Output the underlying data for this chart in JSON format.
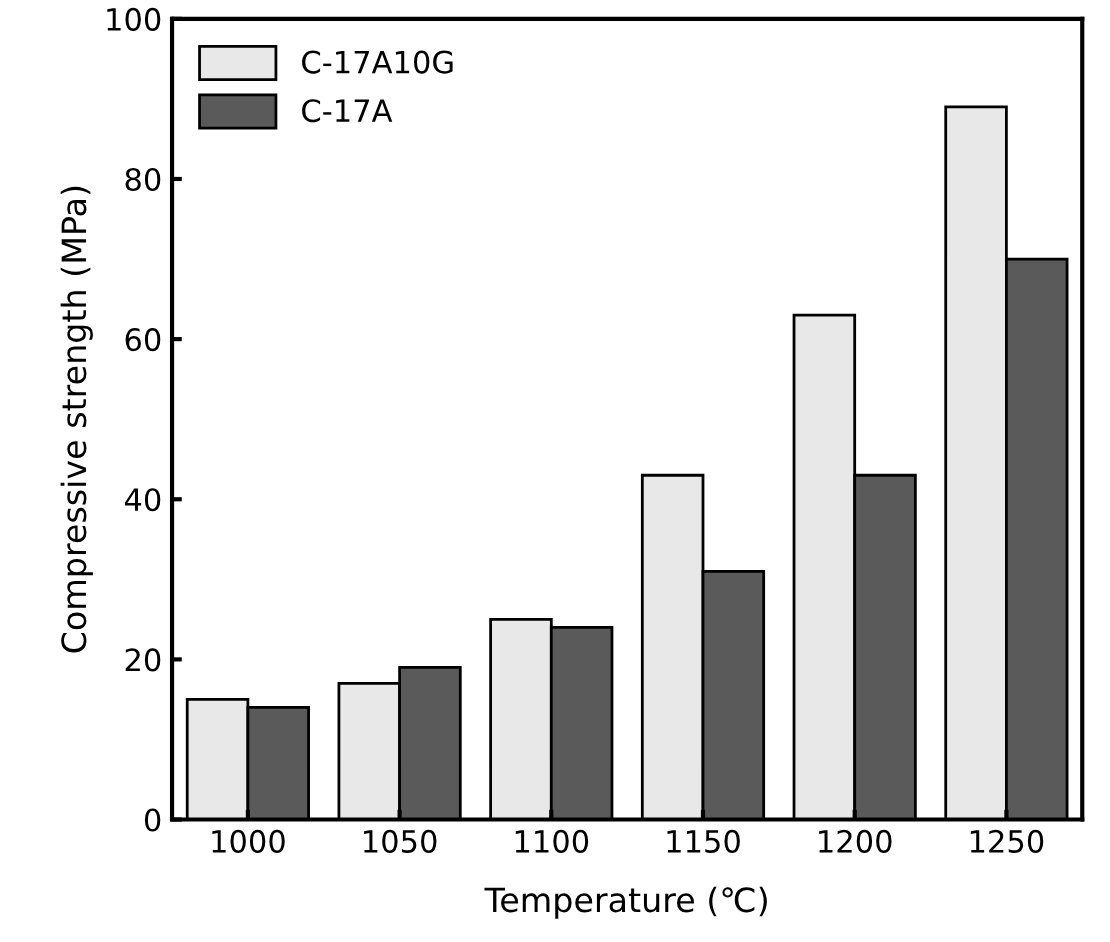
{
  "chart_data": {
    "type": "bar",
    "xlabel": "Temperature (℃)",
    "ylabel": "Compressive strength (MPa)",
    "categories": [
      "1000",
      "1050",
      "1100",
      "1150",
      "1200",
      "1250"
    ],
    "series": [
      {
        "name": "C-17A10G",
        "color": "#e8e8e8",
        "values": [
          15,
          17,
          25,
          43,
          63,
          89
        ]
      },
      {
        "name": "C-17A",
        "color": "#5a5a5a",
        "values": [
          14,
          19,
          24,
          31,
          43,
          70
        ]
      }
    ],
    "ylim": [
      0,
      100
    ],
    "yticks": [
      0,
      20,
      40,
      60,
      80,
      100
    ],
    "grid": false,
    "legend": "top left"
  }
}
